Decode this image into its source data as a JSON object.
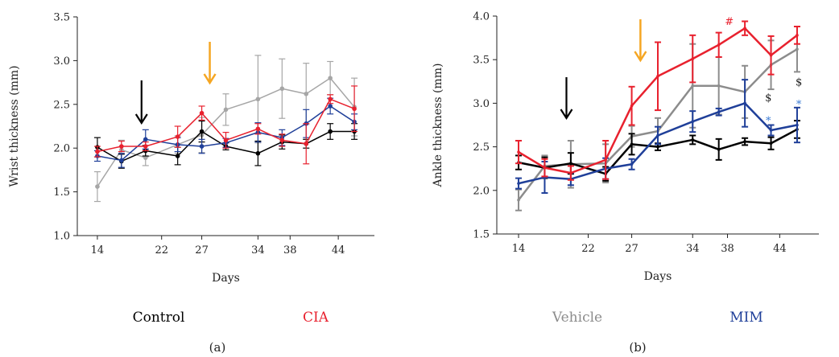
{
  "legend": [
    {
      "label": "Control",
      "color": "#000000"
    },
    {
      "label": "CIA",
      "color": "#e8212e"
    },
    {
      "label": "Vehicle",
      "color": "#8c8c8c"
    },
    {
      "label": "MIM",
      "color": "#1f3f99"
    }
  ],
  "panel_labels": [
    "(a)",
    "(b)"
  ],
  "arrows": {
    "black_color": "#000000",
    "orange_color": "#f5a623"
  },
  "chart_data": [
    {
      "type": "line",
      "panel": "(a)",
      "xlabel": "Days",
      "ylabel": "Wrist thickness (mm)",
      "ylim": [
        1.0,
        3.5
      ],
      "yticks": [
        "1.0",
        "1.5",
        "2.0",
        "2.5",
        "3.0",
        "3.5"
      ],
      "x_tick_labels": [
        "14",
        "22",
        "27",
        "34",
        "38",
        "44"
      ],
      "x_tick_days": [
        14,
        22,
        27,
        34,
        38,
        44
      ],
      "grid": false,
      "arrow_days": {
        "black": 19.5,
        "orange": 28
      },
      "series": [
        {
          "name": "Control",
          "color": "#000000",
          "width": 1.5,
          "x": [
            14,
            17,
            20,
            24,
            27,
            30,
            34,
            37,
            40,
            43,
            46
          ],
          "y": [
            2.01,
            1.85,
            1.97,
            1.91,
            2.19,
            2.02,
            1.94,
            2.07,
            2.05,
            2.19,
            2.19
          ],
          "err": [
            0.11,
            0.08,
            0.06,
            0.1,
            0.12,
            0.04,
            0.14,
            0.08,
            0.05,
            0.09,
            0.09
          ]
        },
        {
          "name": "CIA",
          "color": "#e8212e",
          "width": 1.5,
          "x": [
            14,
            17,
            20,
            24,
            27,
            30,
            34,
            37,
            40,
            43,
            46
          ],
          "y": [
            1.96,
            2.02,
            2.02,
            2.13,
            2.4,
            2.09,
            2.22,
            2.09,
            2.05,
            2.56,
            2.45
          ],
          "err": [
            0.06,
            0.06,
            0.05,
            0.12,
            0.08,
            0.09,
            0.06,
            0.07,
            0.23,
            0.05,
            0.26
          ]
        },
        {
          "name": "Vehicle",
          "color": "#a6a6a6",
          "width": 1.5,
          "x": [
            14,
            17,
            20,
            24,
            27,
            30,
            34,
            37,
            40,
            43,
            46
          ],
          "y": [
            1.56,
            1.98,
            1.89,
            2.04,
            2.15,
            2.44,
            2.56,
            2.68,
            2.62,
            2.8,
            2.47
          ],
          "err": [
            0.17,
            0.11,
            0.09,
            0.1,
            0.2,
            0.18,
            0.5,
            0.34,
            0.35,
            0.19,
            0.33
          ]
        },
        {
          "name": "MIM",
          "color": "#1f3f99",
          "width": 1.5,
          "x": [
            14,
            17,
            20,
            24,
            27,
            30,
            34,
            37,
            40,
            43,
            46
          ],
          "y": [
            1.91,
            1.86,
            2.1,
            2.04,
            2.02,
            2.06,
            2.18,
            2.12,
            2.28,
            2.48,
            2.3
          ],
          "err": [
            0.06,
            0.08,
            0.11,
            0.08,
            0.08,
            0.05,
            0.11,
            0.09,
            0.16,
            0.09,
            0.09
          ]
        }
      ]
    },
    {
      "type": "line",
      "panel": "(b)",
      "xlabel": "Days",
      "ylabel": "Ankle thickness (mm)",
      "ylim": [
        1.5,
        4.0
      ],
      "yticks": [
        "1.5",
        "2.0",
        "2.5",
        "3.0",
        "3.5",
        "4.0"
      ],
      "x_tick_labels": [
        "14",
        "22",
        "27",
        "34",
        "38",
        "44"
      ],
      "x_tick_days": [
        14,
        22,
        27,
        34,
        38,
        44
      ],
      "grid": false,
      "arrow_days": {
        "black": 19.5,
        "orange": 28
      },
      "series": [
        {
          "name": "Control",
          "color": "#000000",
          "width": 2.5,
          "x": [
            14,
            17,
            20,
            24,
            27,
            30,
            34,
            37,
            40,
            43,
            46
          ],
          "y": [
            2.32,
            2.26,
            2.31,
            2.19,
            2.53,
            2.5,
            2.58,
            2.47,
            2.56,
            2.54,
            2.7
          ],
          "err": [
            0.08,
            0.12,
            0.12,
            0.08,
            0.12,
            0.04,
            0.05,
            0.12,
            0.04,
            0.07,
            0.1
          ]
        },
        {
          "name": "CIA",
          "color": "#e8212e",
          "width": 2.5,
          "x": [
            14,
            17,
            20,
            24,
            27,
            30,
            34,
            37,
            40,
            43,
            46
          ],
          "y": [
            2.44,
            2.26,
            2.2,
            2.35,
            2.97,
            3.31,
            3.51,
            3.67,
            3.86,
            3.55,
            3.78
          ],
          "err": [
            0.13,
            0.1,
            0.08,
            0.22,
            0.22,
            0.39,
            0.27,
            0.14,
            0.08,
            0.22,
            0.1
          ]
        },
        {
          "name": "Vehicle",
          "color": "#8c8c8c",
          "width": 2.5,
          "x": [
            14,
            17,
            20,
            24,
            27,
            30,
            34,
            37,
            40,
            43,
            46
          ],
          "y": [
            1.89,
            2.28,
            2.3,
            2.31,
            2.62,
            2.68,
            3.2,
            3.2,
            3.13,
            3.44,
            3.62
          ],
          "err": [
            0.12,
            0.12,
            0.27,
            0.22,
            0.12,
            0.15,
            0.48,
            0.33,
            0.3,
            0.28,
            0.26
          ]
        },
        {
          "name": "MIM",
          "color": "#1f3f99",
          "width": 2.5,
          "x": [
            14,
            17,
            20,
            24,
            27,
            30,
            34,
            37,
            40,
            43,
            46
          ],
          "y": [
            2.08,
            2.15,
            2.13,
            2.25,
            2.3,
            2.63,
            2.79,
            2.9,
            3.0,
            2.69,
            2.75
          ],
          "err": [
            0.06,
            0.18,
            0.07,
            0.12,
            0.06,
            0.1,
            0.12,
            0.04,
            0.27,
            0.06,
            0.2
          ]
        }
      ],
      "annotations": [
        {
          "text": "#",
          "color": "#e8212e",
          "x": 38.2,
          "y": 3.9
        },
        {
          "text": "$",
          "color": "#222222",
          "x": 42.7,
          "y": 3.02
        },
        {
          "text": "*",
          "color": "#3a7bd5",
          "x": 42.7,
          "y": 2.76
        },
        {
          "text": "$",
          "color": "#222222",
          "x": 46.2,
          "y": 3.2
        },
        {
          "text": "*",
          "color": "#3a7bd5",
          "x": 46.2,
          "y": 2.95
        }
      ]
    }
  ]
}
